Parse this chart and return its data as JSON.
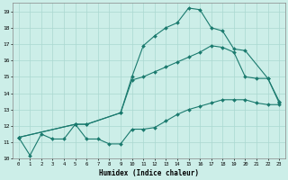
{
  "xlabel": "Humidex (Indice chaleur)",
  "bg_color": "#cceee8",
  "grid_color": "#aad8d0",
  "line_color": "#1a7a6e",
  "xlim": [
    -0.5,
    23.5
  ],
  "ylim": [
    10,
    19.5
  ],
  "yticks": [
    10,
    11,
    12,
    13,
    14,
    15,
    16,
    17,
    18,
    19
  ],
  "xticks": [
    0,
    1,
    2,
    3,
    4,
    5,
    6,
    7,
    8,
    9,
    10,
    11,
    12,
    13,
    14,
    15,
    16,
    17,
    18,
    19,
    20,
    21,
    22,
    23
  ],
  "line1_x": [
    0,
    1,
    2,
    3,
    4,
    5,
    6,
    7,
    8,
    9,
    10,
    11,
    12,
    13,
    14,
    15,
    16,
    17,
    18,
    19,
    20,
    21,
    22,
    23
  ],
  "line1_y": [
    11.3,
    10.2,
    11.5,
    11.2,
    11.2,
    12.1,
    11.2,
    11.2,
    10.9,
    10.9,
    11.8,
    11.8,
    11.9,
    12.3,
    12.7,
    13.0,
    13.2,
    13.4,
    13.6,
    13.6,
    13.6,
    13.4,
    13.3,
    13.3
  ],
  "line2_x": [
    0,
    5,
    6,
    9,
    10,
    11,
    12,
    13,
    14,
    15,
    16,
    17,
    18,
    19,
    20,
    22,
    23
  ],
  "line2_y": [
    11.3,
    12.1,
    12.1,
    12.8,
    15.0,
    16.9,
    17.5,
    18.0,
    18.3,
    19.2,
    19.1,
    18.0,
    17.8,
    16.7,
    16.6,
    14.9,
    13.4
  ],
  "line3_x": [
    0,
    5,
    6,
    9,
    10,
    11,
    12,
    13,
    14,
    15,
    16,
    17,
    18,
    19,
    20,
    21,
    22,
    23
  ],
  "line3_y": [
    11.3,
    12.1,
    12.1,
    12.8,
    14.8,
    15.0,
    15.3,
    15.6,
    15.9,
    16.2,
    16.5,
    16.9,
    16.8,
    16.5,
    15.0,
    14.9,
    14.9,
    13.5
  ]
}
